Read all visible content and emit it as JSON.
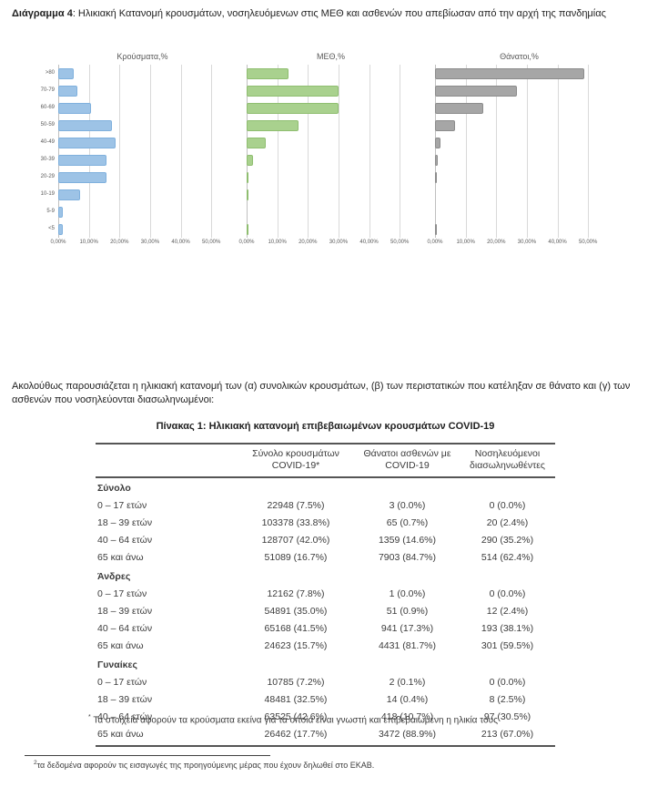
{
  "figure": {
    "label": "Διάγραμμα 4",
    "title": ": Ηλικιακή Κατανομή κρουσμάτων, νοσηλευόμενων στις ΜΕΘ και ασθενών που απεβίωσαν από την αρχή της πανδημίας"
  },
  "chart_data": [
    {
      "id": "cases",
      "type": "bar",
      "orientation": "horizontal",
      "title": "Κρούσματα,%",
      "categories": [
        ">80",
        "70-79",
        "60-69",
        "50-59",
        "40-49",
        "30-39",
        "20-29",
        "10-19",
        "5-9",
        "<5"
      ],
      "values": [
        5.2,
        6.3,
        10.6,
        17.6,
        18.8,
        15.8,
        15.7,
        7.0,
        1.6,
        1.4
      ],
      "color": "#9dc3e6",
      "border_color": "#7fb0dd",
      "xlim": [
        0,
        50
      ],
      "xmax_display": 55,
      "xticks": [
        "0,00%",
        "10,00%",
        "20,00%",
        "30,00%",
        "40,00%",
        "50,00%"
      ],
      "grid": true,
      "show_category_labels": true
    },
    {
      "id": "icu",
      "type": "bar",
      "orientation": "horizontal",
      "title": "ΜΕΘ,%",
      "categories": [
        ">80",
        "70-79",
        "60-69",
        "50-59",
        "40-49",
        "30-39",
        "20-29",
        "10-19",
        "5-9",
        "<5"
      ],
      "values": [
        13.8,
        30.1,
        30.0,
        17.0,
        6.3,
        2.0,
        0.6,
        0.1,
        0.0,
        0.1
      ],
      "color": "#a9d18e",
      "border_color": "#8fbe70",
      "xlim": [
        0,
        50
      ],
      "xmax_display": 55,
      "xticks": [
        "0,00%",
        "10,00%",
        "20,00%",
        "30,00%",
        "40,00%",
        "50,00%"
      ],
      "grid": true,
      "show_category_labels": false
    },
    {
      "id": "deaths",
      "type": "bar",
      "orientation": "horizontal",
      "title": "Θάνατοι,%",
      "categories": [
        ">80",
        "70-79",
        "60-69",
        "50-59",
        "40-49",
        "30-39",
        "20-29",
        "10-19",
        "5-9",
        "<5"
      ],
      "values": [
        48.8,
        26.8,
        15.8,
        6.4,
        1.9,
        0.9,
        0.1,
        0.0,
        0.0,
        0.05
      ],
      "color": "#a6a6a6",
      "border_color": "#8c8c8c",
      "xlim": [
        0,
        50
      ],
      "xmax_display": 55,
      "xticks": [
        "0,00%",
        "10,00%",
        "20,00%",
        "30,00%",
        "40,00%",
        "50,00%"
      ],
      "grid": true,
      "show_category_labels": false
    }
  ],
  "paragraph": "Ακολούθως παρουσιάζεται η ηλικιακή κατανομή των (α) συνολικών κρουσμάτων, (β) των περιστατικών που κατέληξαν σε θάνατο και (γ) των ασθενών που νοσηλεύονται διασωληνωμένοι:",
  "table": {
    "title": "Πίνακας 1: Ηλικιακή κατανομή επιβεβαιωμένων κρουσμάτων COVID-19",
    "columns": [
      "",
      "Σύνολο κρουσμάτων\nCOVID-19*",
      "Θάνατοι ασθενών με\nCOVID-19",
      "Νοσηλευόμενοι\nδιασωληνωθέντες"
    ],
    "sections": [
      {
        "label": "Σύνολο",
        "rows": [
          {
            "label": "0 – 17 ετών",
            "cells": [
              "22948 (7.5%)",
              "3 (0.0%)",
              "0 (0.0%)"
            ]
          },
          {
            "label": "18 – 39 ετών",
            "cells": [
              "103378 (33.8%)",
              "65 (0.7%)",
              "20 (2.4%)"
            ]
          },
          {
            "label": "40 – 64 ετών",
            "cells": [
              "128707 (42.0%)",
              "1359 (14.6%)",
              "290 (35.2%)"
            ]
          },
          {
            "label": "65 και άνω",
            "cells": [
              "51089 (16.7%)",
              "7903 (84.7%)",
              "514 (62.4%)"
            ]
          }
        ]
      },
      {
        "label": "Άνδρες",
        "rows": [
          {
            "label": "0 – 17 ετών",
            "cells": [
              "12162 (7.8%)",
              "1 (0.0%)",
              "0 (0.0%)"
            ]
          },
          {
            "label": "18 – 39 ετών",
            "cells": [
              "54891 (35.0%)",
              "51 (0.9%)",
              "12 (2.4%)"
            ]
          },
          {
            "label": "40 – 64 ετών",
            "cells": [
              "65168 (41.5%)",
              "941 (17.3%)",
              "193 (38.1%)"
            ]
          },
          {
            "label": "65 και άνω",
            "cells": [
              "24623 (15.7%)",
              "4431 (81.7%)",
              "301 (59.5%)"
            ]
          }
        ]
      },
      {
        "label": "Γυναίκες",
        "rows": [
          {
            "label": "0 – 17 ετών",
            "cells": [
              "10785 (7.2%)",
              "2 (0.1%)",
              "0 (0.0%)"
            ]
          },
          {
            "label": "18 – 39 ετών",
            "cells": [
              "48481 (32.5%)",
              "14 (0.4%)",
              "8 (2.5%)"
            ]
          },
          {
            "label": "40 – 64 ετών",
            "cells": [
              "63525 (42.6%)",
              "418 (10.7%)",
              "97 (30.5%)"
            ]
          },
          {
            "label": "65 και άνω",
            "cells": [
              "26462 (17.7%)",
              "3472 (88.9%)",
              "213 (67.0%)"
            ]
          }
        ]
      }
    ]
  },
  "footnotes": {
    "table_note_marker": "*",
    "table_note": "Τα στοιχεία αφορούν τα κρούσματα εκείνα για τα οποία είναι γνωστή και επιβεβαιωμένη η ηλικία τους",
    "page_note_marker": "2",
    "page_note": "τα δεδομένα αφορούν τις εισαγωγές της προηγούμενης μέρας που έχουν δηλωθεί στο ΕΚΑΒ."
  },
  "colors": {
    "cases_bar": "#9dc3e6",
    "icu_bar": "#a9d18e",
    "deaths_bar": "#a6a6a6",
    "gridline": "#d9d9d9",
    "table_border": "#555555"
  }
}
